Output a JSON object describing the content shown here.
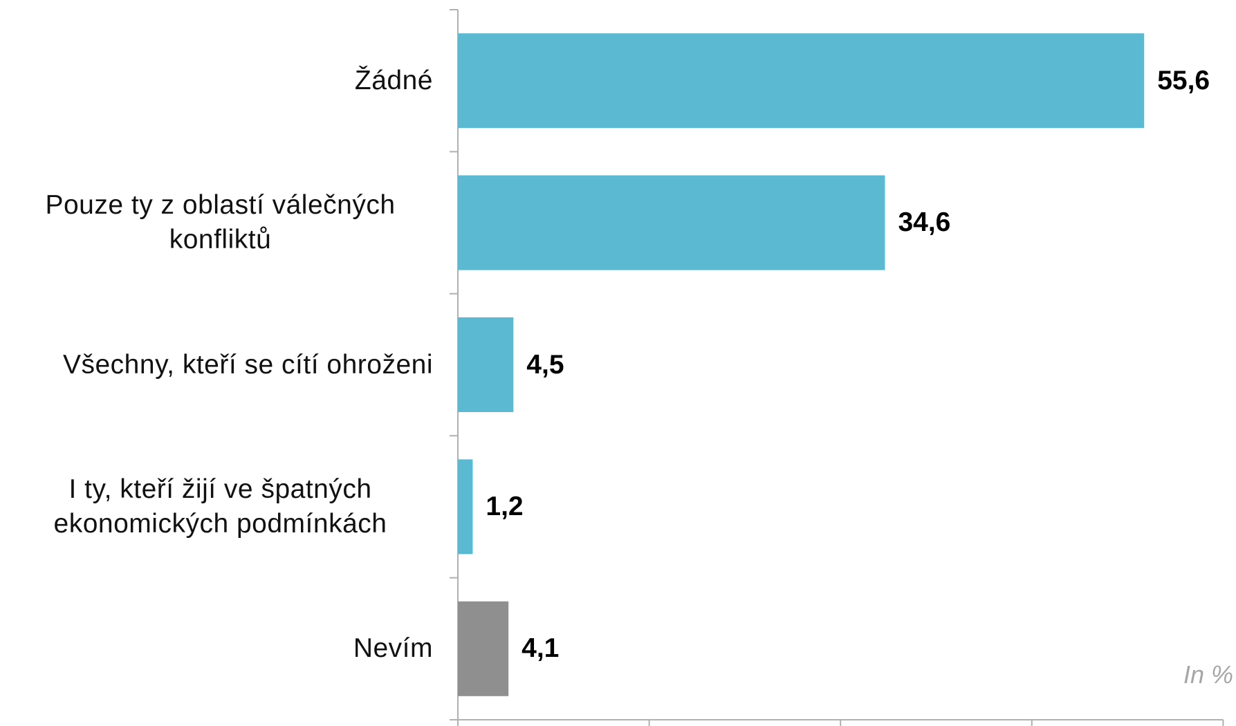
{
  "chart_data": {
    "type": "barh",
    "categories": [
      "Žádné",
      "Pouze ty z oblastí válečných konfliktů",
      "Všechny, kteří se cítí ohroženi",
      "I ty, kteří žijí ve špatných ekonomických podmínkách",
      "Nevím"
    ],
    "values": [
      55.6,
      34.6,
      4.5,
      1.2,
      4.1
    ],
    "value_labels": [
      "55,6",
      "34,6",
      "4,5",
      "1,2",
      "4,1"
    ],
    "colors": [
      "#5bb9d2",
      "#5bb9d2",
      "#5bb9d2",
      "#5bb9d2",
      "#8f8f8f"
    ],
    "xlim": [
      0,
      62
    ],
    "xticks": [
      0,
      15.5,
      31,
      46.5,
      62
    ],
    "annotation": "In %"
  }
}
